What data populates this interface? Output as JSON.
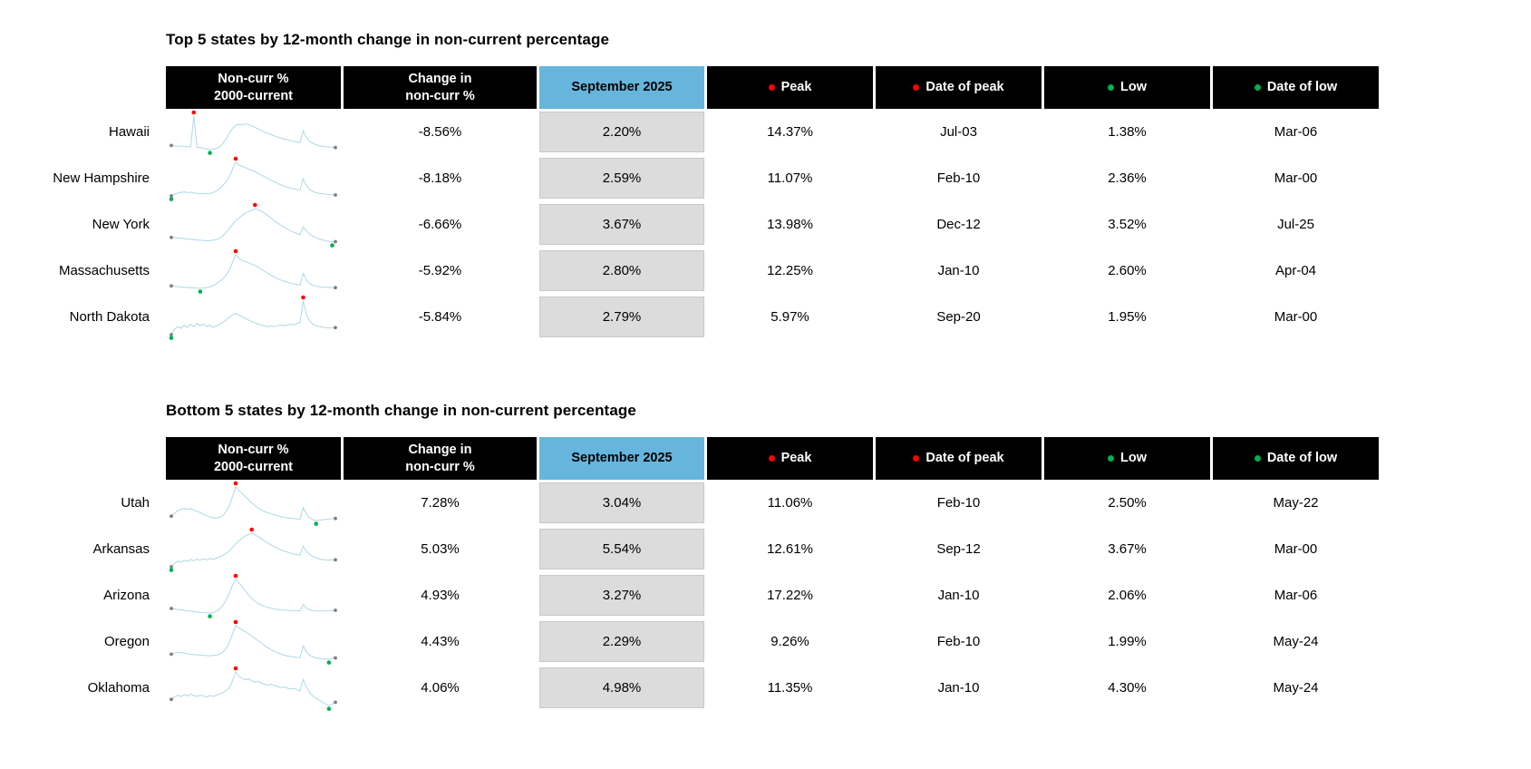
{
  "colors": {
    "header_bg": "#000000",
    "header_text": "#FFFFFF",
    "highlight_header_bg": "#66B5DC",
    "value_cell_bg": "#DCDCDC",
    "spark_line": "#ADD8E6",
    "red": "#FF0000",
    "green": "#00B050",
    "gray_dot": "#7F7F7F"
  },
  "value_keys": [
    "change",
    "current",
    "peak",
    "peak_date",
    "low",
    "low_date"
  ],
  "chart_data": [
    {
      "type": "table",
      "title": "Top 5 states by 12-month change in non-current percentage",
      "columns": [
        {
          "key": "sparkline",
          "label": "Non-curr %",
          "label2": "2000-current"
        },
        {
          "key": "change",
          "label": "Change in",
          "label2": "non-curr %"
        },
        {
          "key": "september-2025",
          "label": "September 2025",
          "variant": "highlight"
        },
        {
          "key": "peak",
          "label": "Peak",
          "dot": "red"
        },
        {
          "key": "peak-date",
          "label": "Date of peak",
          "dot": "red"
        },
        {
          "key": "low",
          "label": "Low",
          "dot": "green"
        },
        {
          "key": "low-date",
          "label": "Date of low",
          "dot": "green"
        }
      ],
      "rows": [
        {
          "state": "Hawaii",
          "change": "-8.56%",
          "current": "2.20%",
          "peak": "14.37%",
          "peak_date": "Jul-03",
          "low": "1.38%",
          "low_date": "Mar-06",
          "spark": [
            3.0,
            2.9,
            2.7,
            2.8,
            2.6,
            2.5,
            2.4,
            14.37,
            2.3,
            2.1,
            1.9,
            1.7,
            1.38,
            1.6,
            1.9,
            2.4,
            3.6,
            5.5,
            7.8,
            9.6,
            10.8,
            11.2,
            11.0,
            11.3,
            11.1,
            10.6,
            10.0,
            9.4,
            8.8,
            8.2,
            7.7,
            7.2,
            6.7,
            6.3,
            5.9,
            5.5,
            5.2,
            4.9,
            4.6,
            4.3,
            4.1,
            8.6,
            6.0,
            4.6,
            3.8,
            3.3,
            2.9,
            2.7,
            2.5,
            2.4,
            2.3,
            2.2
          ]
        },
        {
          "state": "New Hampshire",
          "change": "-8.18%",
          "current": "2.59%",
          "peak": "11.07%",
          "peak_date": "Feb-10",
          "low": "2.36%",
          "low_date": "Mar-00",
          "spark": [
            2.36,
            2.8,
            3.1,
            3.3,
            3.4,
            3.2,
            3.3,
            3.1,
            3.0,
            2.9,
            3.0,
            2.9,
            3.0,
            3.2,
            3.6,
            4.2,
            5.0,
            6.0,
            7.3,
            9.2,
            11.07,
            10.4,
            10.0,
            9.7,
            9.3,
            9.0,
            8.6,
            8.2,
            7.8,
            7.3,
            6.9,
            6.4,
            6.0,
            5.6,
            5.2,
            4.9,
            4.6,
            4.4,
            4.2,
            4.0,
            3.9,
            6.8,
            5.0,
            4.0,
            3.5,
            3.2,
            3.0,
            2.9,
            2.8,
            2.7,
            2.65,
            2.59
          ]
        },
        {
          "state": "New York",
          "change": "-6.66%",
          "current": "3.67%",
          "peak": "13.98%",
          "peak_date": "Dec-12",
          "low": "3.52%",
          "low_date": "Jul-25",
          "spark": [
            5.0,
            4.9,
            4.7,
            4.8,
            4.6,
            4.5,
            4.4,
            4.3,
            4.2,
            4.1,
            4.0,
            3.9,
            4.0,
            4.1,
            4.3,
            4.8,
            5.5,
            6.5,
            7.8,
            9.0,
            10.2,
            11.0,
            11.8,
            12.5,
            13.0,
            13.5,
            13.98,
            13.6,
            13.1,
            12.5,
            11.8,
            11.0,
            10.2,
            9.5,
            8.8,
            8.2,
            7.6,
            7.1,
            6.6,
            6.2,
            5.9,
            8.3,
            7.0,
            6.0,
            5.4,
            4.9,
            4.5,
            4.2,
            3.95,
            3.75,
            3.52,
            3.67
          ]
        },
        {
          "state": "Massachusetts",
          "change": "-5.92%",
          "current": "2.80%",
          "peak": "12.25%",
          "peak_date": "Jan-10",
          "low": "2.60%",
          "low_date": "Apr-04",
          "spark": [
            3.3,
            3.2,
            3.1,
            3.0,
            2.9,
            2.85,
            2.8,
            2.75,
            2.65,
            2.6,
            2.7,
            2.8,
            3.0,
            3.4,
            3.9,
            4.6,
            5.4,
            6.4,
            7.8,
            10.0,
            12.25,
            11.2,
            10.6,
            10.3,
            10.0,
            9.6,
            9.2,
            8.7,
            8.1,
            7.5,
            6.9,
            6.4,
            5.9,
            5.4,
            5.0,
            4.7,
            4.4,
            4.1,
            3.9,
            3.7,
            3.6,
            6.9,
            5.0,
            4.0,
            3.5,
            3.2,
            3.05,
            2.95,
            2.9,
            2.85,
            2.82,
            2.8
          ]
        },
        {
          "state": "North Dakota",
          "change": "-5.84%",
          "current": "2.79%",
          "peak": "5.97%",
          "peak_date": "Sep-20",
          "low": "1.95%",
          "low_date": "Mar-00",
          "spark": [
            1.95,
            2.6,
            2.9,
            2.7,
            3.1,
            2.8,
            3.2,
            2.9,
            3.3,
            3.0,
            3.2,
            2.9,
            3.1,
            2.8,
            3.0,
            3.2,
            3.4,
            3.7,
            4.0,
            4.3,
            4.5,
            4.3,
            4.1,
            3.9,
            3.7,
            3.5,
            3.4,
            3.2,
            3.1,
            3.0,
            2.9,
            3.0,
            2.9,
            3.0,
            3.1,
            3.0,
            3.1,
            3.2,
            3.1,
            3.3,
            3.4,
            5.97,
            4.4,
            3.6,
            3.2,
            3.0,
            2.9,
            2.85,
            2.8,
            2.75,
            2.77,
            2.79
          ]
        }
      ]
    },
    {
      "type": "table",
      "title": "Bottom 5 states by 12-month change in non-current percentage",
      "columns": [
        {
          "key": "sparkline",
          "label": "Non-curr %",
          "label2": "2000-current"
        },
        {
          "key": "change",
          "label": "Change in",
          "label2": "non-curr %"
        },
        {
          "key": "september-2025",
          "label": "September 2025",
          "variant": "highlight"
        },
        {
          "key": "peak",
          "label": "Peak",
          "dot": "red"
        },
        {
          "key": "peak-date",
          "label": "Date of peak",
          "dot": "red"
        },
        {
          "key": "low",
          "label": "Low",
          "dot": "green"
        },
        {
          "key": "low-date",
          "label": "Date of low",
          "dot": "green"
        }
      ],
      "rows": [
        {
          "state": "Utah",
          "change": "7.28%",
          "current": "3.04%",
          "peak": "11.06%",
          "peak_date": "Feb-10",
          "low": "2.50%",
          "low_date": "May-22",
          "spark": [
            3.6,
            4.3,
            5.0,
            5.4,
            5.6,
            5.3,
            5.5,
            5.2,
            4.9,
            4.5,
            4.1,
            3.7,
            3.4,
            3.2,
            3.1,
            3.3,
            3.8,
            4.8,
            6.2,
            8.6,
            11.06,
            10.2,
            9.4,
            8.6,
            7.8,
            7.0,
            6.3,
            5.7,
            5.2,
            4.8,
            4.5,
            4.2,
            3.9,
            3.7,
            3.5,
            3.3,
            3.2,
            3.1,
            3.0,
            2.95,
            2.9,
            5.8,
            4.2,
            3.2,
            2.7,
            2.5,
            2.6,
            2.7,
            2.8,
            2.9,
            2.97,
            3.04
          ]
        },
        {
          "state": "Arkansas",
          "change": "5.03%",
          "current": "5.54%",
          "peak": "12.61%",
          "peak_date": "Sep-12",
          "low": "3.67%",
          "low_date": "Mar-00",
          "spark": [
            3.67,
            4.6,
            5.2,
            4.9,
            5.4,
            5.1,
            5.6,
            5.3,
            5.7,
            5.4,
            5.8,
            5.5,
            5.9,
            5.6,
            6.0,
            6.3,
            6.7,
            7.2,
            7.9,
            8.8,
            9.8,
            10.6,
            11.3,
            11.9,
            12.3,
            12.61,
            12.2,
            11.7,
            11.1,
            10.5,
            10.0,
            9.5,
            9.0,
            8.6,
            8.2,
            7.9,
            7.6,
            7.3,
            7.1,
            6.9,
            6.8,
            9.2,
            7.8,
            6.9,
            6.4,
            6.0,
            5.8,
            5.6,
            5.5,
            5.45,
            5.5,
            5.54
          ]
        },
        {
          "state": "Arizona",
          "change": "4.93%",
          "current": "3.27%",
          "peak": "17.22%",
          "peak_date": "Jan-10",
          "low": "2.06%",
          "low_date": "Mar-06",
          "spark": [
            4.1,
            3.9,
            3.7,
            3.5,
            3.3,
            3.1,
            2.9,
            2.7,
            2.5,
            2.3,
            2.2,
            2.1,
            2.06,
            2.3,
            2.8,
            3.8,
            5.5,
            8.0,
            11.0,
            14.5,
            17.22,
            15.8,
            14.0,
            12.0,
            10.2,
            8.7,
            7.4,
            6.4,
            5.6,
            5.0,
            4.6,
            4.2,
            3.9,
            3.7,
            3.5,
            3.4,
            3.3,
            3.2,
            3.15,
            3.1,
            3.05,
            5.9,
            4.3,
            3.5,
            3.2,
            3.0,
            2.95,
            3.0,
            3.05,
            3.1,
            3.2,
            3.27
          ]
        },
        {
          "state": "Oregon",
          "change": "4.43%",
          "current": "2.29%",
          "peak": "9.26%",
          "peak_date": "Feb-10",
          "low": "1.99%",
          "low_date": "May-24",
          "spark": [
            3.1,
            3.3,
            3.5,
            3.4,
            3.3,
            3.2,
            3.1,
            3.0,
            2.95,
            2.9,
            2.85,
            2.8,
            2.75,
            2.8,
            2.9,
            3.1,
            3.5,
            4.3,
            5.5,
            7.4,
            9.26,
            8.8,
            8.4,
            8.0,
            7.5,
            7.0,
            6.5,
            6.0,
            5.5,
            5.0,
            4.5,
            4.1,
            3.7,
            3.4,
            3.1,
            2.9,
            2.7,
            2.6,
            2.5,
            2.4,
            2.35,
            4.9,
            3.6,
            2.9,
            2.5,
            2.3,
            2.15,
            2.1,
            2.05,
            1.99,
            2.15,
            2.29
          ]
        },
        {
          "state": "Oklahoma",
          "change": "4.06%",
          "current": "4.98%",
          "peak": "11.35%",
          "peak_date": "Jan-10",
          "low": "4.30%",
          "low_date": "May-24",
          "spark": [
            5.6,
            6.1,
            6.5,
            6.2,
            6.6,
            6.3,
            6.7,
            6.4,
            6.2,
            6.5,
            6.3,
            6.1,
            6.4,
            6.2,
            6.5,
            6.7,
            7.0,
            7.4,
            8.0,
            9.5,
            11.35,
            10.5,
            10.0,
            9.7,
            9.9,
            9.5,
            9.2,
            9.4,
            9.0,
            8.8,
            8.6,
            8.8,
            8.5,
            8.3,
            8.1,
            8.2,
            8.0,
            7.8,
            7.9,
            7.6,
            7.4,
            9.8,
            8.2,
            7.0,
            6.3,
            5.8,
            5.4,
            5.0,
            4.6,
            4.3,
            4.6,
            4.98
          ]
        }
      ]
    }
  ]
}
